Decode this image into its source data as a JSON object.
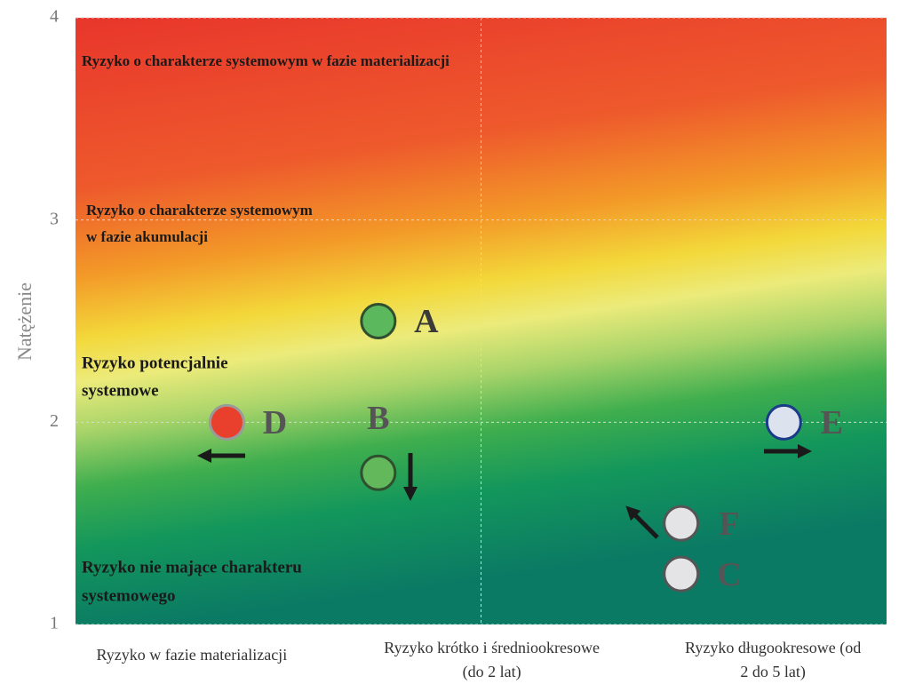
{
  "chart_data": {
    "type": "scatter",
    "ylabel": "Natężenie",
    "xlim": [
      0,
      3
    ],
    "ylim": [
      1,
      4
    ],
    "yticks": [
      1,
      2,
      3,
      4
    ],
    "xgrid": [
      1.5
    ],
    "grid": true,
    "xticks": [
      {
        "value": 0.43,
        "label": [
          "Ryzyko w fazie materializacji"
        ]
      },
      {
        "value": 1.54,
        "label": [
          "Ryzyko krótko i średniookresowe",
          "(do 2 lat)"
        ]
      },
      {
        "value": 2.58,
        "label": [
          "Ryzyko długookresowe (od",
          "2 do 5 lat)"
        ]
      }
    ],
    "annotations": [
      [
        "Ryzyko o charakterze systemowym w fazie materializacji"
      ],
      [
        "Ryzyko o charakterze systemowym",
        "w fazie akumulacji"
      ],
      [
        "Ryzyko potencjalnie",
        "systemowe"
      ],
      [
        "Ryzyko nie mające charakteru",
        "systemowego"
      ]
    ],
    "series": [
      {
        "name": "A",
        "color": "#5cb85c",
        "stroke": "#2f4f2f",
        "x": [
          1.12
        ],
        "values": [
          2.5
        ]
      },
      {
        "name": "B",
        "color": "#62b85a",
        "stroke": "#2f4f2f",
        "x": [
          1.12
        ],
        "values": [
          1.75
        ]
      },
      {
        "name": "D",
        "color": "#e8402c",
        "stroke": "#9a9a9a",
        "x": [
          0.56
        ],
        "values": [
          2.0
        ]
      },
      {
        "name": "E",
        "color": "#dde3ee",
        "stroke": "#1b3a8a",
        "x": [
          2.62
        ],
        "values": [
          2.0
        ]
      },
      {
        "name": "F",
        "color": "#e4e4e6",
        "stroke": "#555555",
        "x": [
          2.24
        ],
        "values": [
          1.5
        ]
      },
      {
        "name": "C",
        "color": "#e4e4e6",
        "stroke": "#555555",
        "x": [
          2.24
        ],
        "values": [
          1.25
        ]
      }
    ]
  }
}
